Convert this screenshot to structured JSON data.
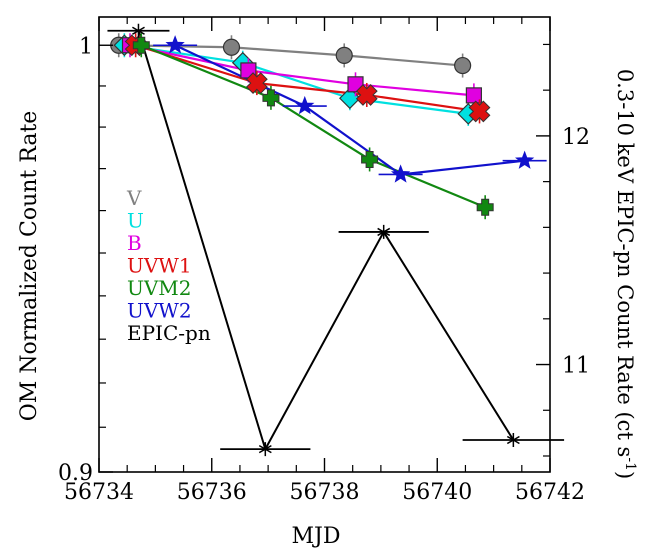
{
  "chart_data": {
    "type": "line",
    "xlabel": "MJD",
    "ylabel_left": "OM Normalized Count Rate",
    "ylabel_right_main": "0.3-10 keV EPIC-pn Count Rate (ct s",
    "ylabel_right_sup": "-1",
    "ylabel_right_close": ")",
    "xlim": [
      56734,
      56742
    ],
    "ylim_left": [
      0.9,
      1.007
    ],
    "ylim_right": [
      10.53,
      12.52
    ],
    "y_scale_left": "log",
    "x_ticks": [
      {
        "value": 56734,
        "label": "56734"
      },
      {
        "value": 56736,
        "label": "56736"
      },
      {
        "value": 56738,
        "label": "56738"
      },
      {
        "value": 56740,
        "label": "56740"
      },
      {
        "value": 56742,
        "label": "56742"
      }
    ],
    "y_left_ticks": [
      {
        "value": 1.0,
        "label": "1"
      },
      {
        "value": 0.9,
        "label": "0.9"
      }
    ],
    "y_right_ticks": [
      {
        "value": 12,
        "label": "12"
      },
      {
        "value": 11,
        "label": "11"
      }
    ],
    "legend_position": "left-middle",
    "series": [
      {
        "name": "V",
        "color": "#808080",
        "marker": "circle",
        "axis": "left",
        "x": [
          56734.35,
          56736.35,
          56738.35,
          56740.45
        ],
        "y": [
          1.0,
          0.9995,
          0.9975,
          0.995
        ]
      },
      {
        "name": "U",
        "color": "#00e0e0",
        "marker": "diamond",
        "axis": "left",
        "x": [
          56734.45,
          56736.55,
          56738.45,
          56740.55
        ],
        "y": [
          1.0,
          0.9957,
          0.987,
          0.9832
        ]
      },
      {
        "name": "B",
        "color": "#e000e0",
        "marker": "square",
        "axis": "left",
        "x": [
          56734.55,
          56736.65,
          56738.55,
          56740.65
        ],
        "y": [
          1.0,
          0.9938,
          0.9904,
          0.9877
        ]
      },
      {
        "name": "UVW1",
        "color": "#dd1111",
        "marker": "x",
        "axis": "left",
        "x": [
          56734.65,
          56736.8,
          56738.75,
          56740.75
        ],
        "y": [
          1.0,
          0.9907,
          0.9878,
          0.9838
        ]
      },
      {
        "name": "UVM2",
        "color": "#118811",
        "marker": "plus",
        "axis": "left",
        "x": [
          56734.75,
          56737.05,
          56738.8,
          56740.85
        ],
        "y": [
          1.0,
          0.9871,
          0.9722,
          0.9608
        ]
      },
      {
        "name": "UVW2",
        "color": "#1111cc",
        "marker": "star",
        "axis": "left",
        "x": [
          56735.35,
          56737.65,
          56739.35,
          56741.55
        ],
        "y": [
          1.0,
          0.9851,
          0.9686,
          0.9719
        ]
      },
      {
        "name": "EPIC-pn",
        "color": "#000000",
        "marker": "asterisk",
        "axis": "right",
        "x": [
          56734.7,
          56736.95,
          56739.05,
          56741.35
        ],
        "y": [
          12.46,
          10.63,
          11.58,
          10.67
        ],
        "x_err": [
          0.55,
          0.8,
          0.8,
          0.9
        ]
      }
    ]
  }
}
